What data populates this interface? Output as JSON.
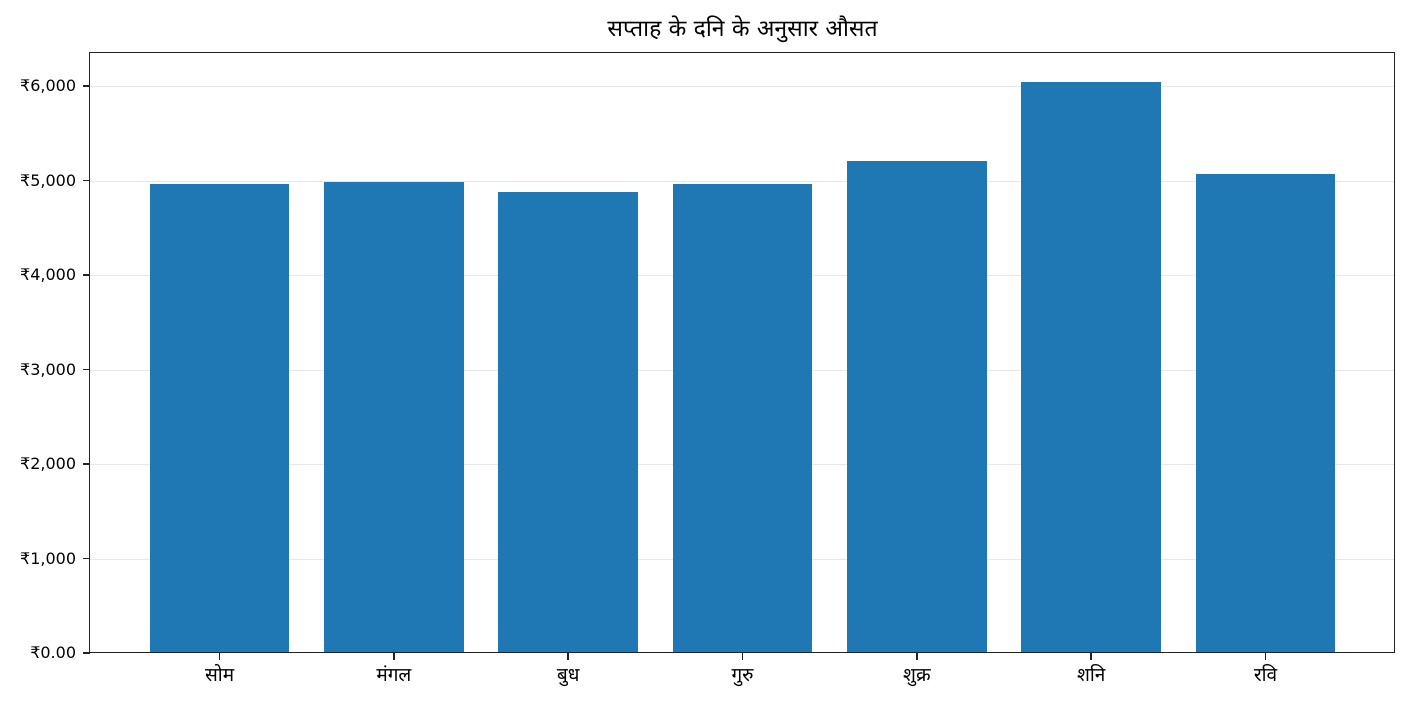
{
  "chart_data": {
    "type": "bar",
    "title": "सप्ताह के दनि के अनुसार औसत",
    "xlabel": "",
    "ylabel": "",
    "categories": [
      "सोम",
      "मंगल",
      "बुध",
      "गुरु",
      "शुक्र",
      "शनि",
      "रवि"
    ],
    "values": [
      4960,
      4990,
      4875,
      4960,
      5205,
      6040,
      5065
    ],
    "ylim": [
      0,
      6350
    ],
    "yticks": [
      0,
      1000,
      2000,
      3000,
      4000,
      5000,
      6000
    ],
    "ytick_labels": [
      "₹0.00",
      "₹1,000",
      "₹2,000",
      "₹3,000",
      "₹4,000",
      "₹5,000",
      "₹6,000"
    ],
    "grid": "y",
    "bar_color": "#1f77b4",
    "legend": null
  }
}
